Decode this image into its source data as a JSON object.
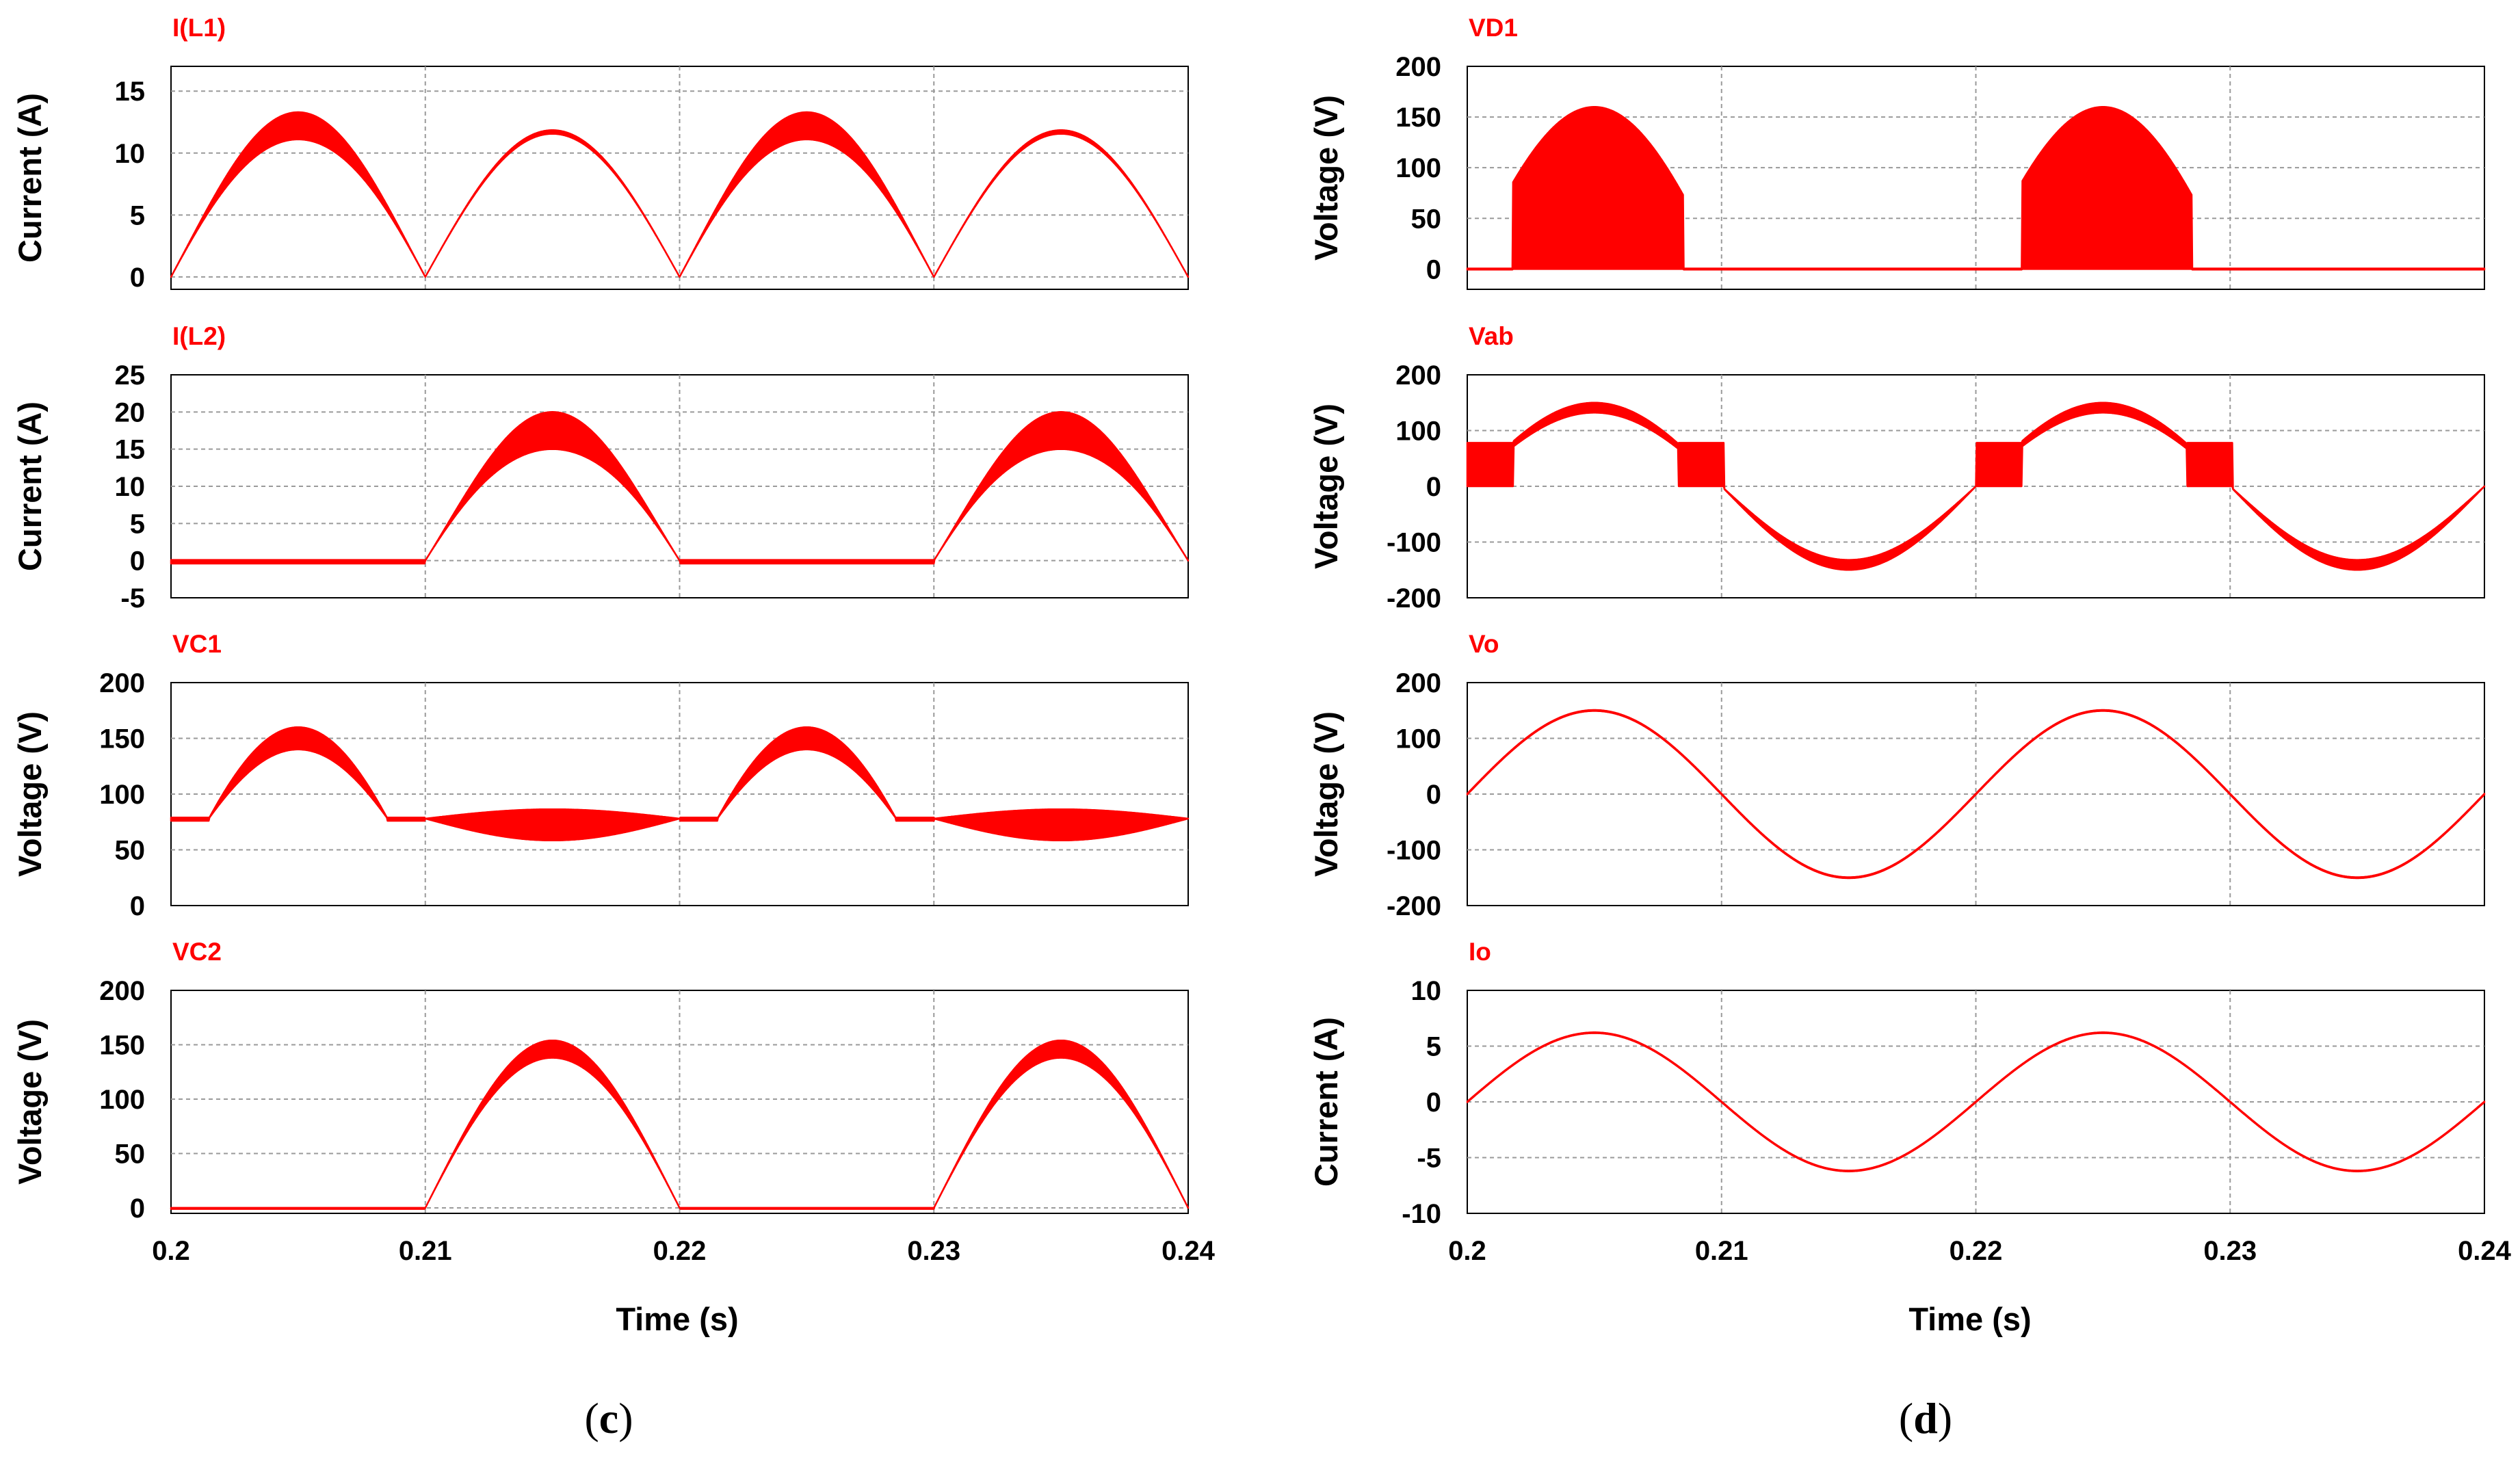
{
  "colors": {
    "trace": "#ff0000",
    "grid": "#9a9a9a",
    "frame": "#000000"
  },
  "panels": [
    {
      "id": "c",
      "label_open": "(",
      "label_letter": "c",
      "label_close": ")",
      "xlabel": "Time (s)",
      "x_ticks": [
        "0.2",
        "0.21",
        "0.22",
        "0.23",
        "0.24"
      ]
    },
    {
      "id": "d",
      "label_open": "(",
      "label_letter": "d",
      "label_close": ")",
      "xlabel": "Time (s)",
      "x_ticks": [
        "0.2",
        "0.21",
        "0.22",
        "0.23",
        "0.24"
      ]
    }
  ],
  "chart_data": [
    {
      "panel": "c",
      "row": 0,
      "type": "line",
      "title": "I(L1)",
      "ylabel": "Current (A)",
      "x_range": [
        0.2,
        0.24
      ],
      "ylim": [
        -1,
        17
      ],
      "y_ticks": [
        0,
        5,
        10,
        15
      ],
      "y_tick_labels": [
        "0",
        "5",
        "10",
        "15"
      ],
      "series": [
        {
          "name": "I(L1)",
          "model": "abs_sin",
          "dc": 0,
          "amp_odd": 12.2,
          "amp_even": 11.7,
          "ripple_odd": 2.2,
          "ripple_even": 0.3,
          "freq_hz": 50
        }
      ]
    },
    {
      "panel": "c",
      "row": 1,
      "type": "line",
      "title": "I(L2)",
      "ylabel": "Current (A)",
      "x_range": [
        0.2,
        0.24
      ],
      "ylim": [
        -5,
        25
      ],
      "y_ticks": [
        -5,
        0,
        5,
        10,
        15,
        20,
        25
      ],
      "y_tick_labels": [
        "-5",
        "0",
        "5",
        "10",
        "15",
        "20",
        "25"
      ],
      "series": [
        {
          "name": "I(L2)",
          "model": "half_wave_neg",
          "dc": 0,
          "amp": 17.5,
          "ripple": 5,
          "freq_hz": 50
        }
      ]
    },
    {
      "panel": "c",
      "row": 2,
      "type": "line",
      "title": "VC1",
      "ylabel": "Voltage (V)",
      "x_range": [
        0.2,
        0.24
      ],
      "ylim": [
        0,
        200
      ],
      "y_ticks": [
        0,
        50,
        100,
        150,
        200
      ],
      "y_tick_labels": [
        "0",
        "50",
        "100",
        "150",
        "200"
      ],
      "series": [
        {
          "name": "VC1",
          "model": "vc1",
          "dc": 78,
          "peak": 150,
          "ripple_peak": 20,
          "valley_ripple": 28,
          "freq_hz": 50
        }
      ]
    },
    {
      "panel": "c",
      "row": 3,
      "type": "line",
      "title": "VC2",
      "ylabel": "Voltage (V)",
      "x_range": [
        0.2,
        0.24
      ],
      "ylim": [
        -5,
        200
      ],
      "y_ticks": [
        0,
        50,
        100,
        150,
        200
      ],
      "y_tick_labels": [
        "0",
        "50",
        "100",
        "150",
        "200"
      ],
      "series": [
        {
          "name": "VC2",
          "model": "half_wave_neg",
          "dc": 0,
          "amp": 146,
          "ripple": 16,
          "freq_hz": 50
        }
      ]
    },
    {
      "panel": "d",
      "row": 0,
      "type": "line",
      "title": "VD1",
      "ylabel": "Voltage (V)",
      "x_range": [
        0.2,
        0.24
      ],
      "ylim": [
        -20,
        200
      ],
      "y_ticks": [
        0,
        50,
        100,
        150,
        200
      ],
      "y_tick_labels": [
        "0",
        "50",
        "100",
        "150",
        "200"
      ],
      "series": [
        {
          "name": "VD1",
          "model": "switch_block",
          "amp": 160,
          "on_start": 0.2018,
          "on_end": 0.2085,
          "freq_hz": 50
        }
      ]
    },
    {
      "panel": "d",
      "row": 1,
      "type": "line",
      "title": "Vab",
      "ylabel": "Voltage (V)",
      "x_range": [
        0.2,
        0.24
      ],
      "ylim": [
        -200,
        200
      ],
      "y_ticks": [
        -200,
        -100,
        0,
        100,
        200
      ],
      "y_tick_labels": [
        "-200",
        "-100",
        "0",
        "100",
        "200"
      ],
      "series": [
        {
          "name": "Vab",
          "model": "vab",
          "amp": 150,
          "ripple": 18,
          "step_level": 78,
          "freq_hz": 50
        }
      ]
    },
    {
      "panel": "d",
      "row": 2,
      "type": "line",
      "title": "Vo",
      "ylabel": "Voltage (V)",
      "x_range": [
        0.2,
        0.24
      ],
      "ylim": [
        -200,
        200
      ],
      "y_ticks": [
        -200,
        -100,
        0,
        100,
        200
      ],
      "y_tick_labels": [
        "-200",
        "-100",
        "0",
        "100",
        "200"
      ],
      "series": [
        {
          "name": "Vo",
          "model": "sine",
          "amp": 150,
          "freq_hz": 50
        }
      ]
    },
    {
      "panel": "d",
      "row": 3,
      "type": "line",
      "title": "Io",
      "ylabel": "Current (A)",
      "x_range": [
        0.2,
        0.24
      ],
      "ylim": [
        -10,
        10
      ],
      "y_ticks": [
        -10,
        -5,
        0,
        5,
        10
      ],
      "y_tick_labels": [
        "-10",
        "-5",
        "0",
        "5",
        "10"
      ],
      "series": [
        {
          "name": "Io",
          "model": "sine",
          "amp": 6.2,
          "freq_hz": 50
        }
      ]
    }
  ]
}
